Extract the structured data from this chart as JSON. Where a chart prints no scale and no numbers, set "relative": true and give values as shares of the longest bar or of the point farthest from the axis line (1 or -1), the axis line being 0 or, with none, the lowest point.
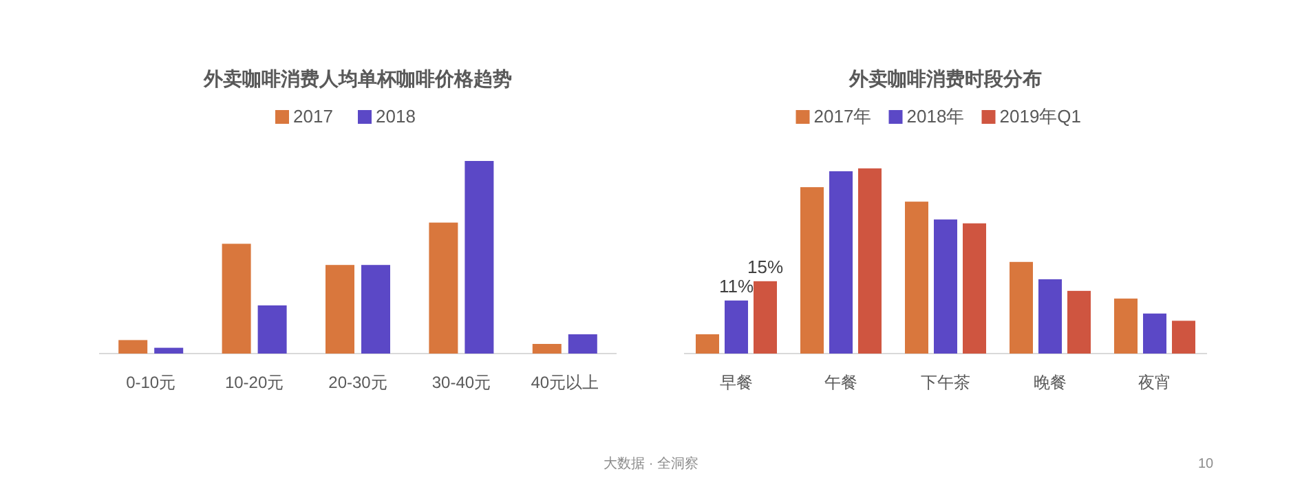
{
  "chart_data": [
    {
      "type": "bar",
      "title": "外卖咖啡消费人均单杯咖啡价格趋势",
      "categories": [
        "0-10元",
        "10-20元",
        "20-30元",
        "30-40元",
        "40元以上"
      ],
      "relative": true,
      "legend": "top",
      "series": [
        {
          "name": "2017",
          "color": "#d9773d",
          "values": [
            0.07,
            0.57,
            0.46,
            0.68,
            0.05
          ]
        },
        {
          "name": "2018",
          "color": "#5b48c6",
          "values": [
            0.03,
            0.25,
            0.46,
            1,
            0.1
          ]
        }
      ]
    },
    {
      "type": "bar",
      "title": "外卖咖啡消费时段分布",
      "categories": [
        "早餐",
        "午餐",
        "下午茶",
        "晚餐",
        "夜宵"
      ],
      "legend": "top",
      "series": [
        {
          "name": "2017年",
          "color": "#d9773d",
          "values": [
            4,
            34.5,
            31.5,
            19,
            11.4
          ]
        },
        {
          "name": "2018年",
          "color": "#5b48c6",
          "values": [
            11,
            37.8,
            27.8,
            15.4,
            8.3
          ],
          "value_labels": [
            "11%",
            null,
            null,
            null,
            null
          ]
        },
        {
          "name": "2019年Q1",
          "color": "#cf5540",
          "values": [
            15,
            38.4,
            27,
            13,
            6.8
          ],
          "value_labels": [
            "15%",
            null,
            null,
            null,
            null
          ]
        }
      ],
      "annotations": [
        "大数据 · 全洞察",
        "10"
      ]
    }
  ]
}
